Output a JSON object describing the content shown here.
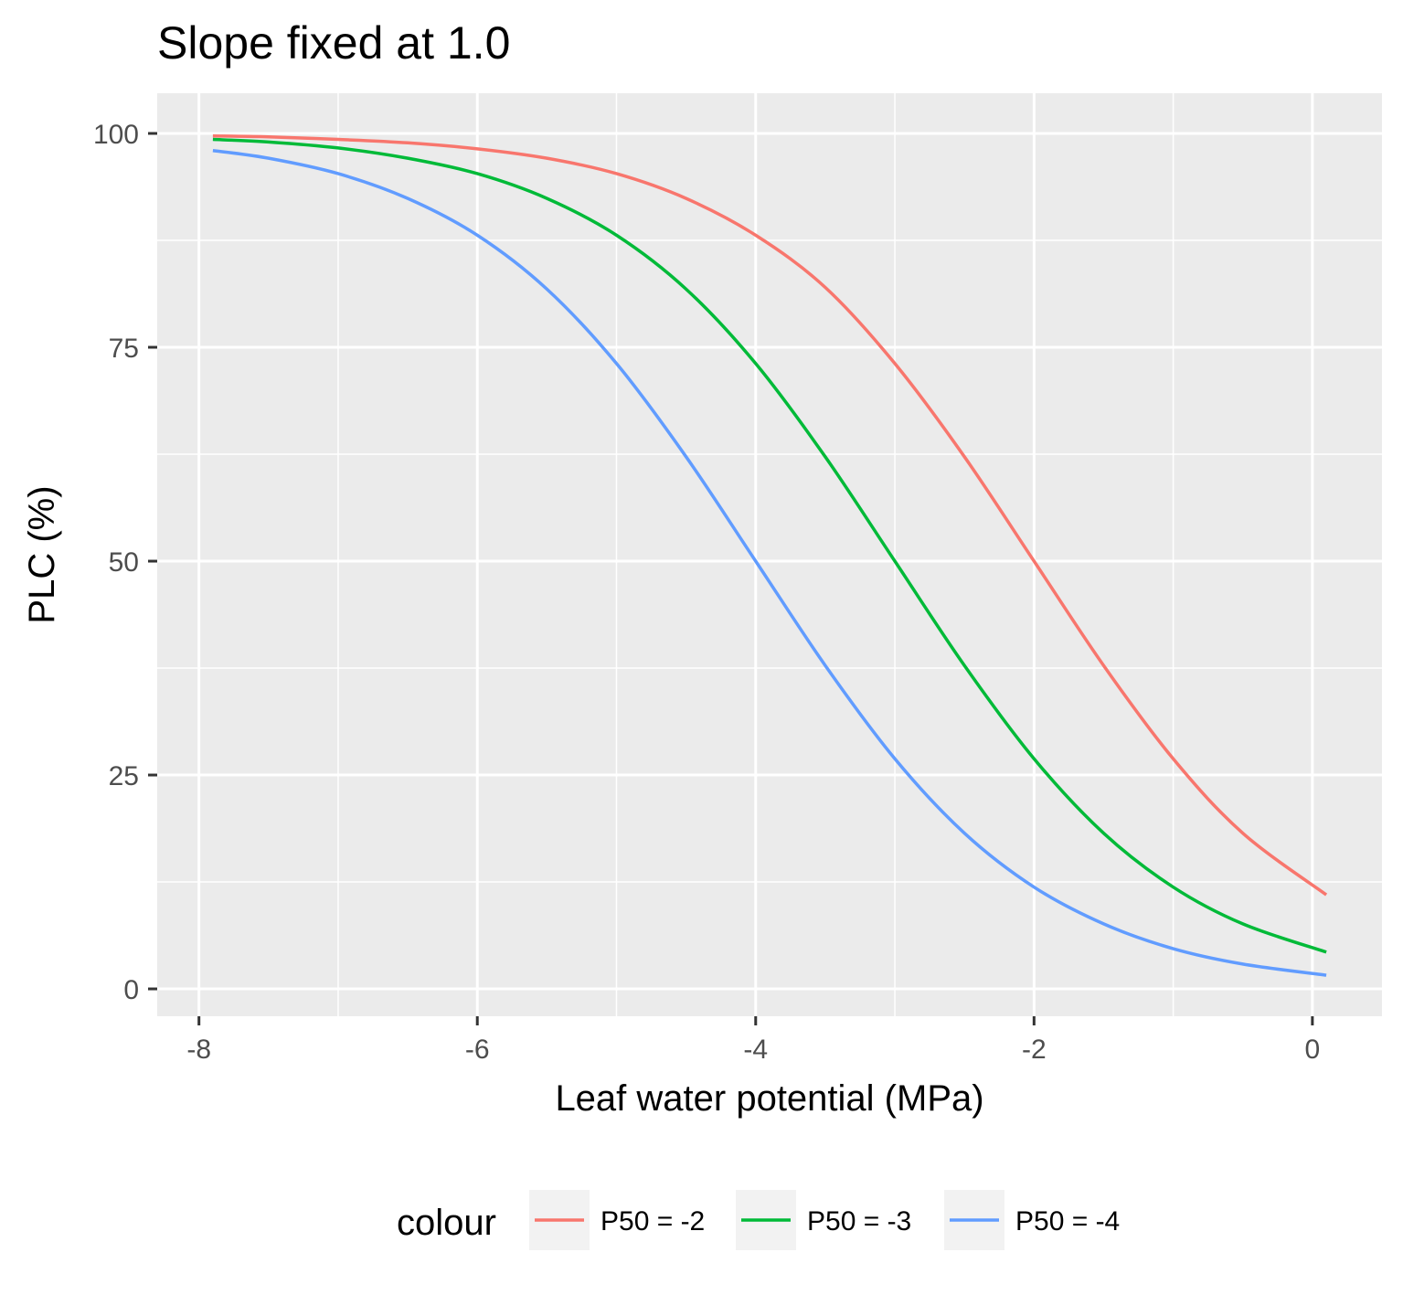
{
  "chart_data": {
    "type": "line",
    "title": "Slope fixed at 1.0",
    "xlabel": "Leaf water potential (MPa)",
    "ylabel": "PLC (%)",
    "xlim": [
      -8.3,
      0.5
    ],
    "ylim": [
      -3.2,
      104.7
    ],
    "x_ticks": [
      -8,
      -6,
      -4,
      -2,
      0
    ],
    "x_tick_labels": [
      "-8",
      "-6",
      "-4",
      "-2",
      "0"
    ],
    "y_ticks": [
      0,
      25,
      50,
      75,
      100
    ],
    "y_tick_labels": [
      "0",
      "25",
      "50",
      "75",
      "100"
    ],
    "grid": true,
    "panel_background": "#ebebeb",
    "grid_color": "#ffffff",
    "legend": {
      "title": "colour",
      "position": "bottom"
    },
    "x": [
      -7.9,
      -7.5,
      -7.0,
      -6.5,
      -6.0,
      -5.5,
      -5.0,
      -4.5,
      -4.0,
      -3.5,
      -3.0,
      -2.5,
      -2.0,
      -1.5,
      -1.0,
      -0.5,
      0.1
    ],
    "series": [
      {
        "name": "P50 = -2",
        "color": "#f8766d",
        "values": [
          99.7,
          99.6,
          99.3,
          98.9,
          98.2,
          97.1,
          95.3,
          92.4,
          88.1,
          82.0,
          73.1,
          62.2,
          50.0,
          37.8,
          26.9,
          18.2,
          11.0
        ]
      },
      {
        "name": "P50 = -3",
        "color": "#00ba38",
        "values": [
          99.3,
          99.0,
          98.3,
          97.1,
          95.3,
          92.4,
          88.1,
          81.8,
          73.1,
          62.2,
          50.0,
          37.8,
          26.9,
          18.2,
          11.9,
          7.6,
          4.3
        ]
      },
      {
        "name": "P50 = -4",
        "color": "#619cff",
        "values": [
          98.0,
          97.1,
          95.3,
          92.4,
          88.1,
          81.8,
          73.1,
          62.2,
          50.0,
          37.8,
          26.9,
          18.2,
          11.9,
          7.6,
          4.7,
          2.9,
          1.6
        ]
      }
    ]
  }
}
